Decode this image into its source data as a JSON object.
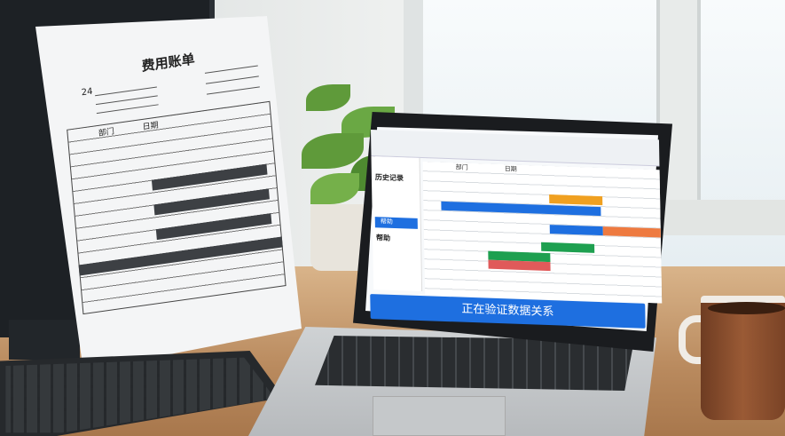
{
  "paper": {
    "title": "费用账单",
    "number": "24",
    "headers": [
      "部门",
      "日期"
    ]
  },
  "laptop": {
    "sidebar": {
      "history": "历史记录",
      "help_selected": "帮助",
      "help": "帮助"
    },
    "grid_headers": [
      "部门",
      "日期"
    ],
    "status_banner": "正在验证数据关系"
  },
  "colors": {
    "accent": "#1e6fe0",
    "orange": "#f0a020",
    "green": "#1ea050",
    "red": "#e05a5a",
    "coral": "#ee7a40"
  }
}
